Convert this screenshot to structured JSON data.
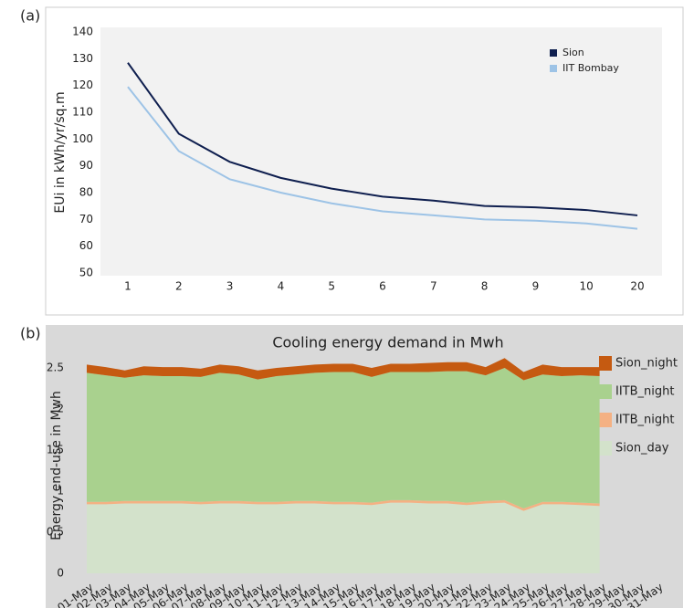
{
  "chart_data": [
    {
      "type": "line",
      "panel_label": "(a)",
      "y_label": "EUi in kWh/yr/sq.m",
      "categories": [
        "1",
        "2",
        "3",
        "4",
        "5",
        "6",
        "7",
        "8",
        "9",
        "10",
        "20"
      ],
      "series": [
        {
          "name": "Sion",
          "color": "#0f1f4f",
          "values": [
            128.5,
            102,
            91.5,
            85.5,
            81.5,
            78.5,
            77,
            75,
            74.5,
            73.5,
            71.5
          ]
        },
        {
          "name": "IIT Bombay",
          "color": "#9dc3e6",
          "values": [
            119.5,
            95.5,
            85,
            80,
            76,
            73,
            71.5,
            70,
            69.5,
            68.5,
            66.5
          ]
        }
      ],
      "ylim": [
        50,
        140
      ],
      "yticks": [
        50,
        60,
        70,
        80,
        90,
        100,
        110,
        120,
        130,
        140
      ],
      "legend": "upper right"
    },
    {
      "type": "stacked_area",
      "panel_label": "(b)",
      "title": "Cooling energy demand in Mwh",
      "y_label": "Energy end-use in Mwh",
      "categories": [
        "01-May",
        "02-May",
        "03-May",
        "04-May",
        "05-May",
        "06-May",
        "07-May",
        "08-May",
        "09-May",
        "10-May",
        "11-May",
        "12-May",
        "13-May",
        "14-May",
        "15-May",
        "16-May",
        "17-May",
        "18-May",
        "19-May",
        "20-May",
        "21-May",
        "22-May",
        "23-May",
        "24-May",
        "25-May",
        "26-May",
        "27-May",
        "28-May",
        "29-May",
        "30-May",
        "31-May"
      ],
      "series": [
        {
          "name": "Sion_day",
          "color": "#d3e2cb",
          "values": [
            0.84,
            0.84,
            0.85,
            0.85,
            0.85,
            0.85,
            0.84,
            0.85,
            0.85,
            0.84,
            0.84,
            0.85,
            0.85,
            0.84,
            0.84,
            0.83,
            0.86,
            0.86,
            0.85,
            0.85,
            0.83,
            0.85,
            0.86,
            0.76,
            0.84,
            0.84,
            0.83,
            0.82,
            null,
            null,
            null
          ]
        },
        {
          "name": "IITB_night",
          "color": "#f4b183",
          "values": [
            0.03,
            0.03,
            0.03,
            0.03,
            0.03,
            0.03,
            0.03,
            0.03,
            0.03,
            0.03,
            0.03,
            0.03,
            0.03,
            0.03,
            0.03,
            0.03,
            0.03,
            0.03,
            0.03,
            0.03,
            0.03,
            0.03,
            0.03,
            0.03,
            0.03,
            0.03,
            0.03,
            0.03,
            null,
            null,
            null
          ]
        },
        {
          "name": "IITB_night",
          "color": "#a9d18e",
          "values": [
            1.57,
            1.54,
            1.5,
            1.53,
            1.52,
            1.52,
            1.52,
            1.56,
            1.54,
            1.49,
            1.53,
            1.54,
            1.56,
            1.58,
            1.58,
            1.53,
            1.56,
            1.56,
            1.57,
            1.58,
            1.6,
            1.53,
            1.61,
            1.56,
            1.55,
            1.53,
            1.55,
            1.55,
            null,
            null,
            null
          ]
        },
        {
          "name": "Sion_night",
          "color": "#c55a11",
          "values": [
            0.1,
            0.1,
            0.09,
            0.11,
            0.11,
            0.11,
            0.1,
            0.1,
            0.1,
            0.11,
            0.1,
            0.1,
            0.1,
            0.1,
            0.1,
            0.11,
            0.1,
            0.1,
            0.11,
            0.11,
            0.11,
            0.1,
            0.12,
            0.1,
            0.12,
            0.11,
            0.1,
            0.11,
            null,
            null,
            null
          ]
        }
      ],
      "ylim": [
        0,
        2.7
      ],
      "yticks": [
        0,
        0.5,
        1,
        1.5,
        2,
        2.5
      ],
      "legend": "right"
    }
  ]
}
